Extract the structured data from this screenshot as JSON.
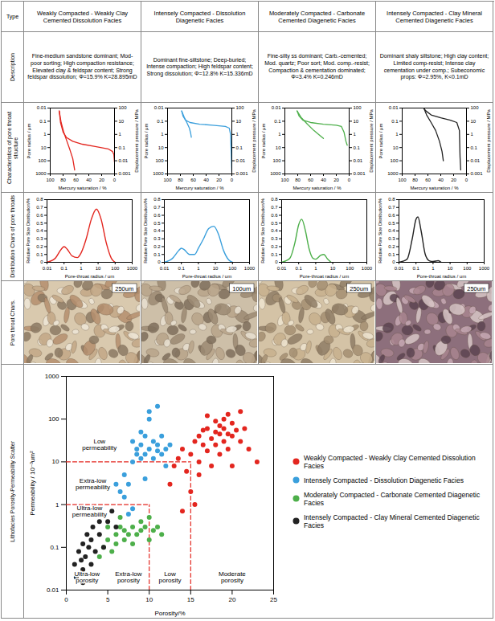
{
  "row_headers": [
    "Type",
    "Description",
    "Characteristics of pore throat structure",
    "Distribution Chars of pore throats",
    "Pore throat Chars.",
    "Lithofacies Porosity-Permeability Scatter"
  ],
  "capillary_axes": {
    "type": "line",
    "log": "y",
    "x_label": "Mercury saturation / %",
    "y_label": "Pore radius / μm",
    "y2_label": "Displacement pressure / MPa",
    "xlim": [
      100,
      0
    ],
    "xticks": [
      100,
      80,
      60,
      40,
      20,
      0
    ],
    "ylim": [
      1000,
      0.01
    ],
    "yticks": [
      1000,
      100,
      10,
      1,
      0.1,
      0.01
    ],
    "y2lim": [
      0.001,
      100
    ],
    "y2ticks": [
      0.001,
      0.01,
      0.1,
      1,
      10,
      100
    ]
  },
  "distribution_axes": {
    "type": "line",
    "log": "x",
    "x_label": "Pore-throat radius / um",
    "y_label": "Relative Pore Size Distribution/%",
    "xlim": [
      0.01,
      1000
    ],
    "xticks": [
      0.01,
      0.1,
      1,
      10,
      100,
      1000
    ],
    "ylim": [
      0,
      0.8
    ],
    "yticks": [
      0,
      0.1,
      0.2,
      0.3,
      0.4,
      0.5,
      0.6,
      0.7,
      0.8
    ]
  },
  "columns": [
    {
      "type": "Weakly Compacted - Weakly Clay Cemented Dissolution Facies",
      "description": "Fine-medium sandstone dominant; Mod-poor sorting; High compaction resistance; Elevated clay & feldspar content; Strong feldspar dissolution; Φ=15.9% K=28.895mD",
      "color": "#e3261f",
      "scale_bar": "250um",
      "capillary_series": [
        {
          "axis": "y2",
          "x": [
            0,
            1,
            3,
            10,
            30,
            50,
            65,
            75,
            80,
            84,
            86
          ],
          "values": [
            0.008,
            0.03,
            0.05,
            0.08,
            0.12,
            0.18,
            0.3,
            0.6,
            1.5,
            8,
            60
          ]
        },
        {
          "axis": "y2",
          "x": [
            86,
            83,
            79,
            74,
            69,
            65,
            63,
            62
          ],
          "values": [
            60,
            8,
            1.5,
            0.3,
            0.06,
            0.015,
            0.004,
            0.002
          ]
        }
      ],
      "distribution": {
        "x": [
          0.01,
          0.03,
          0.07,
          0.1,
          0.15,
          0.3,
          0.6,
          1,
          2,
          4,
          8,
          15,
          30,
          60,
          100
        ],
        "values": [
          0,
          0.05,
          0.17,
          0.2,
          0.17,
          0.08,
          0.06,
          0.12,
          0.3,
          0.55,
          0.68,
          0.55,
          0.25,
          0.05,
          0
        ]
      }
    },
    {
      "type": "Intensely Compacted - Dissolution Diagenetic Facies",
      "description": "Dominant fine-siltstone; Deep-buried; Intense compaction; High feldspar content; Strong dissolution; Φ=12.8% K=15.336mD",
      "color": "#3a9fdc",
      "scale_bar": "100um",
      "capillary_series": [
        {
          "axis": "y2",
          "x": [
            0,
            1,
            2,
            4,
            10,
            30,
            50,
            65,
            72,
            76,
            78
          ],
          "values": [
            0.0015,
            0.05,
            1,
            3,
            4,
            5,
            6,
            8,
            12,
            25,
            60
          ]
        },
        {
          "axis": "y2",
          "x": [
            78,
            74,
            70,
            66,
            64,
            63
          ],
          "values": [
            60,
            20,
            8,
            3,
            1.2,
            0.6
          ]
        }
      ],
      "distribution": {
        "x": [
          0.01,
          0.03,
          0.07,
          0.1,
          0.15,
          0.3,
          0.6,
          1,
          2,
          4,
          8,
          15,
          30,
          60,
          100
        ],
        "values": [
          0,
          0.05,
          0.15,
          0.18,
          0.16,
          0.1,
          0.1,
          0.18,
          0.3,
          0.43,
          0.46,
          0.36,
          0.15,
          0.03,
          0
        ]
      }
    },
    {
      "type": "Moderately Compacted - Carbonate Cemented Diagenetic Facies",
      "description": "Fine-silty ss dominant; Carb.-cemented; Mod. quartz; Poor sort; Mod. comp.-resist; Compaction & cementation dominated; Φ=3.4% K=0.246mD",
      "color": "#4daf4a",
      "scale_bar": "250um",
      "capillary_series": [
        {
          "axis": "y2",
          "x": [
            3,
            5,
            8,
            12,
            20,
            40,
            60,
            72,
            78,
            81
          ],
          "values": [
            0.15,
            0.3,
            1.5,
            4,
            5,
            6,
            8,
            12,
            25,
            60
          ]
        },
        {
          "axis": "y2",
          "x": [
            81,
            75,
            65,
            55,
            45,
            40
          ],
          "values": [
            60,
            20,
            6,
            2,
            0.8,
            0.5
          ]
        }
      ],
      "distribution": {
        "x": [
          0.01,
          0.03,
          0.06,
          0.1,
          0.15,
          0.25,
          0.4,
          0.7,
          1,
          2,
          3,
          5,
          8
        ],
        "values": [
          0,
          0.05,
          0.25,
          0.48,
          0.55,
          0.4,
          0.18,
          0.05,
          0.04,
          0.09,
          0.1,
          0.04,
          0
        ]
      }
    },
    {
      "type": "Intensely Compacted - Clay Mineral Cemented Diagenetic Facies",
      "description": "Dominant shaly siltstone; High clay content; Limited comp-resist; Intense clay cementation under comp.; Subeconomic props: Φ=2.95%, K<0.1mD",
      "color": "#222222",
      "scale_bar": "250um",
      "capillary_series": [
        {
          "axis": "y2",
          "x": [
            9,
            10,
            11,
            15,
            25,
            40,
            55,
            63,
            66
          ],
          "values": [
            0.002,
            0.02,
            2,
            8,
            12,
            18,
            30,
            60,
            90
          ]
        },
        {
          "axis": "y2",
          "x": [
            66,
            62,
            55,
            48,
            42,
            38,
            36
          ],
          "values": [
            90,
            30,
            8,
            2,
            0.3,
            0.05,
            0.01
          ]
        }
      ],
      "distribution": {
        "x": [
          0.01,
          0.03,
          0.06,
          0.1,
          0.13,
          0.2,
          0.35,
          0.6,
          1,
          2,
          3
        ],
        "values": [
          0,
          0.04,
          0.3,
          0.55,
          0.58,
          0.4,
          0.1,
          0.02,
          0.01,
          0.02,
          0
        ]
      }
    }
  ],
  "chart_data": {
    "type": "scatter",
    "log": "y",
    "legend": "right",
    "x_label": "Porosity/%",
    "y_label": "Permeability / 10⁻³um²",
    "xlim": [
      0,
      25
    ],
    "xticks": [
      0,
      5,
      10,
      15,
      20,
      25
    ],
    "ylim": [
      0.01,
      1000
    ],
    "yticks": [
      0.01,
      0.1,
      1,
      10,
      100,
      1000
    ],
    "series": [
      {
        "name": "Weakly Compacted - Weakly Clay Cemented Dissolution Facies",
        "color": "#e3261f",
        "marker": "circle",
        "x": [
          12.5,
          13,
          13.5,
          14,
          14.5,
          15,
          15,
          15.5,
          16,
          16,
          16.5,
          16.5,
          17,
          17,
          17.5,
          17.5,
          18,
          18,
          18,
          18.5,
          18.5,
          18.5,
          19,
          19,
          19,
          19.5,
          19.5,
          20,
          20,
          20,
          20.5,
          21,
          21,
          21.5,
          22,
          23,
          16,
          17,
          19.5,
          15.5,
          14
        ],
        "values": [
          3,
          8,
          12,
          20,
          6,
          2,
          15,
          30,
          40,
          10,
          25,
          55,
          60,
          18,
          35,
          8,
          50,
          90,
          25,
          45,
          70,
          15,
          30,
          100,
          60,
          20,
          130,
          40,
          80,
          8,
          55,
          30,
          150,
          60,
          20,
          10,
          5,
          120,
          45,
          1,
          0.7
        ]
      },
      {
        "name": "Intensely Compacted - Dissolution Diagenetic Facies",
        "color": "#3a9fdc",
        "marker": "circle",
        "x": [
          6,
          6.5,
          7,
          7,
          7.5,
          8,
          8,
          8.5,
          8.5,
          9,
          9,
          9,
          9.5,
          9.5,
          10,
          10,
          10,
          10.5,
          10.5,
          11,
          11,
          11,
          11.5,
          11.5,
          12,
          12,
          12.5,
          8,
          9.5,
          7.5
        ],
        "values": [
          3,
          2,
          1.5,
          5,
          3,
          10,
          30,
          15,
          20,
          50,
          25,
          12,
          15,
          40,
          20,
          100,
          150,
          30,
          12,
          18,
          200,
          25,
          15,
          40,
          20,
          8,
          25,
          0.8,
          4,
          0.6
        ]
      },
      {
        "name": "Moderately Compacted - Carbonate Cemented Diagenetic Facies",
        "color": "#4daf4a",
        "marker": "circle",
        "x": [
          4,
          4.5,
          5,
          5.5,
          6,
          6,
          6.5,
          7,
          7,
          7.5,
          8,
          8,
          8.5,
          9,
          9,
          9.5,
          10,
          10,
          10.5,
          11,
          11.5,
          5,
          6.5
        ],
        "values": [
          0.06,
          0.1,
          0.15,
          0.08,
          0.2,
          0.12,
          0.3,
          0.15,
          0.25,
          0.2,
          0.3,
          0.12,
          0.2,
          0.25,
          0.4,
          0.3,
          0.15,
          0.5,
          0.25,
          0.3,
          0.2,
          0.3,
          0.5
        ]
      },
      {
        "name": "Intensely Compacted - Clay Mineral Cemented Diagenetic Facies",
        "color": "#222222",
        "marker": "circle",
        "x": [
          1,
          1.2,
          1.5,
          1.8,
          2,
          2,
          2.3,
          2.5,
          2.7,
          3,
          3,
          3.2,
          3.5,
          4,
          4,
          4.5,
          5,
          5.5,
          6,
          2
        ],
        "values": [
          0.04,
          0.02,
          0.08,
          0.05,
          0.03,
          0.12,
          0.06,
          0.2,
          0.1,
          0.04,
          0.15,
          0.3,
          0.08,
          0.4,
          0.2,
          0.1,
          0.4,
          0.7,
          0.3,
          0.015
        ]
      }
    ],
    "reference_lines": [
      {
        "x": [
          0,
          15
        ],
        "values": [
          10,
          10
        ],
        "color": "#e3261f",
        "line_style": "dashed"
      },
      {
        "x": [
          15,
          15
        ],
        "values": [
          0.01,
          10
        ],
        "color": "#e3261f",
        "line_style": "dashed"
      },
      {
        "x": [
          0,
          10
        ],
        "values": [
          1,
          1
        ],
        "color": "#e3261f",
        "line_style": "dashed"
      },
      {
        "x": [
          10,
          10
        ],
        "values": [
          0.01,
          1
        ],
        "color": "#e3261f",
        "line_style": "dashed"
      }
    ],
    "annotations": [
      {
        "text": "Low permeability",
        "x": 4,
        "y": 25
      },
      {
        "text": "Extra-low permeability",
        "x": 3.2,
        "y": 3
      },
      {
        "text": "Ultra-low permeability",
        "x": 2.8,
        "y": 0.7
      },
      {
        "text": "Ultra-low porosity",
        "x": 2.5,
        "y": 0.02
      },
      {
        "text": "Extra-low porosity",
        "x": 7.5,
        "y": 0.02
      },
      {
        "text": "Low porosity",
        "x": 12.5,
        "y": 0.02
      },
      {
        "text": "Moderate porosity",
        "x": 20,
        "y": 0.02
      }
    ]
  }
}
